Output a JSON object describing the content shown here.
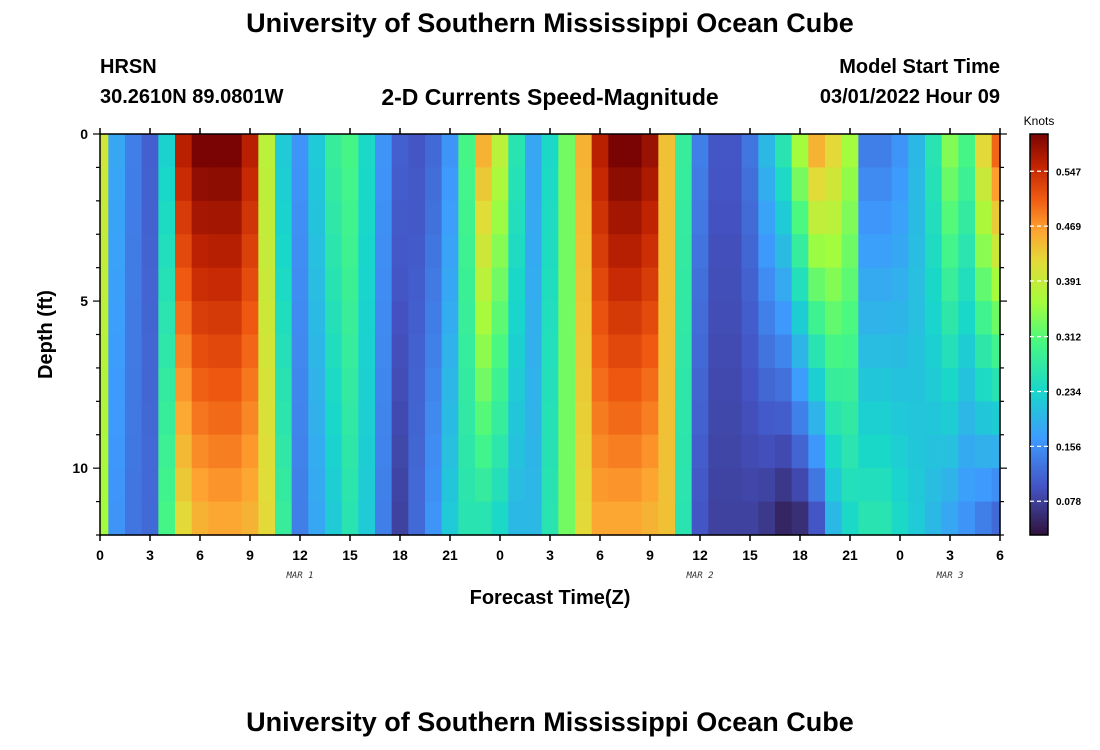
{
  "header": {
    "title": "University of Southern Mississippi Ocean Cube",
    "station_name": "HRSN",
    "station_coords": "30.2610N  89.0801W",
    "plot_title": "2-D Currents Speed-Magnitude",
    "model_label": "Model Start Time",
    "model_value": "03/01/2022 Hour 09"
  },
  "footer": {
    "title": "University of Southern Mississippi Ocean Cube"
  },
  "chart_data": {
    "type": "heatmap",
    "xlabel": "Forecast Time(Z)",
    "ylabel": "Depth (ft)",
    "x_tick_labels": [
      "0",
      "3",
      "6",
      "9",
      "12",
      "15",
      "18",
      "21",
      "0",
      "3",
      "6",
      "9",
      "12",
      "15",
      "18",
      "21",
      "0",
      "3",
      "6"
    ],
    "date_labels": [
      {
        "label": "MAR 1",
        "hour": 12
      },
      {
        "label": "MAR 2",
        "hour": 36
      },
      {
        "label": "MAR 3",
        "hour": 51
      }
    ],
    "xlim": [
      0,
      54
    ],
    "y_tick_labels": [
      "0",
      "5",
      "10"
    ],
    "y_ticks": [
      0,
      5,
      10
    ],
    "ylim": [
      0,
      12
    ],
    "colorbar": {
      "unit": "Knots",
      "tick_labels": [
        "0.547",
        "0.469",
        "0.391",
        "0.312",
        "0.234",
        "0.156",
        "0.078"
      ],
      "ticks": [
        0.547,
        0.469,
        0.391,
        0.312,
        0.234,
        0.156,
        0.078
      ],
      "range": [
        0.03,
        0.6
      ]
    },
    "depth_levels": 12,
    "time_hours": [
      0,
      1,
      2,
      3,
      4,
      5,
      6,
      7,
      8,
      9,
      10,
      11,
      12,
      13,
      14,
      15,
      16,
      17,
      18,
      19,
      20,
      21,
      22,
      23,
      24,
      25,
      26,
      27,
      28,
      29,
      30,
      31,
      32,
      33,
      34,
      35,
      36,
      37,
      38,
      39,
      40,
      41,
      42,
      43,
      44,
      45,
      46,
      47,
      48,
      49,
      50,
      51,
      52,
      53,
      54
    ],
    "speed_surface": [
      0.4,
      0.18,
      0.14,
      0.11,
      0.23,
      0.56,
      0.6,
      0.6,
      0.6,
      0.56,
      0.38,
      0.22,
      0.16,
      0.22,
      0.28,
      0.3,
      0.24,
      0.16,
      0.11,
      0.1,
      0.12,
      0.16,
      0.3,
      0.45,
      0.38,
      0.26,
      0.18,
      0.24,
      0.33,
      0.45,
      0.56,
      0.6,
      0.6,
      0.58,
      0.44,
      0.28,
      0.14,
      0.1,
      0.1,
      0.13,
      0.2,
      0.26,
      0.36,
      0.45,
      0.42,
      0.36,
      0.14,
      0.14,
      0.16,
      0.2,
      0.26,
      0.34,
      0.3,
      0.42,
      0.5
    ],
    "speed_bottom": [
      0.36,
      0.16,
      0.13,
      0.12,
      0.3,
      0.42,
      0.45,
      0.46,
      0.46,
      0.45,
      0.42,
      0.28,
      0.14,
      0.18,
      0.22,
      0.26,
      0.22,
      0.14,
      0.08,
      0.12,
      0.16,
      0.22,
      0.26,
      0.26,
      0.24,
      0.2,
      0.2,
      0.26,
      0.33,
      0.42,
      0.46,
      0.46,
      0.46,
      0.45,
      0.44,
      0.26,
      0.1,
      0.08,
      0.08,
      0.08,
      0.07,
      0.05,
      0.06,
      0.1,
      0.2,
      0.24,
      0.26,
      0.26,
      0.24,
      0.22,
      0.2,
      0.18,
      0.16,
      0.14,
      0.12
    ],
    "grid": false
  }
}
